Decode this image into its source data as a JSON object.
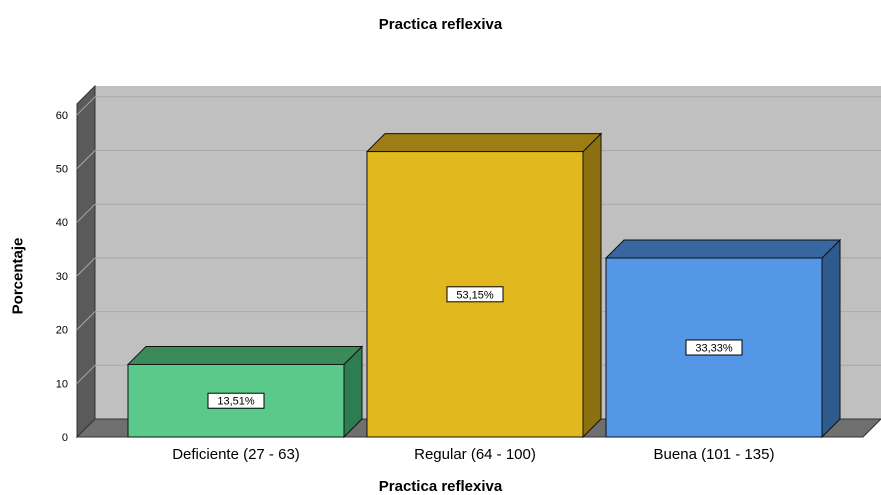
{
  "chart_data": {
    "type": "bar",
    "title": "Practica reflexiva",
    "xlabel": "Practica reflexiva",
    "ylabel": "Porcentaje",
    "categories": [
      "Deficiente (27 - 63)",
      "Regular (64 - 100)",
      "Buena (101 - 135)"
    ],
    "values": [
      13.51,
      53.15,
      33.33
    ],
    "data_labels": [
      "13,51%",
      "53,15%",
      "33,33%"
    ],
    "yticks": [
      0,
      10,
      20,
      30,
      40,
      50,
      60
    ],
    "ylim": [
      0,
      65
    ],
    "grid": true,
    "style": "3d",
    "colors": {
      "bars": [
        "#5ac98a",
        "#e2b81f",
        "#5497e6"
      ],
      "bar_sides": [
        "#2e7d50",
        "#8b6f10",
        "#2f5a8e"
      ],
      "bar_tops": [
        "#3a8a5a",
        "#9c7e14",
        "#3766a0"
      ],
      "background": "#c0c0c0",
      "wall": "#5a5a5a",
      "floor": "#6f6f6f"
    }
  }
}
